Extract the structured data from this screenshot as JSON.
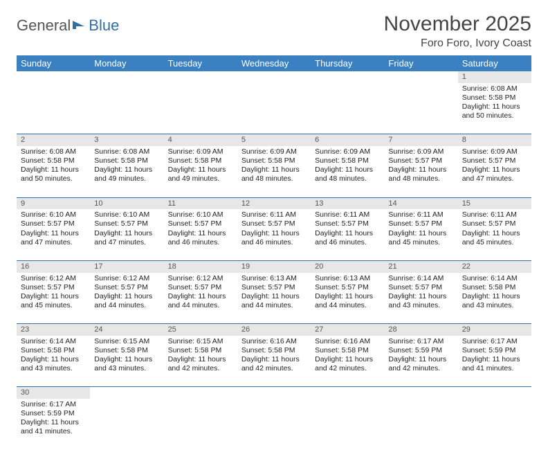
{
  "brand": {
    "part1": "General",
    "part2": "Blue",
    "logo_color": "#2f6fa7"
  },
  "header": {
    "title": "November 2025",
    "location": "Foro Foro, Ivory Coast"
  },
  "theme": {
    "header_bg": "#3b81c2",
    "header_fg": "#ffffff",
    "daynum_bg": "#e7e7e7",
    "divider": "#2f6fa7",
    "page_bg": "#ffffff",
    "text": "#222222"
  },
  "dayNames": [
    "Sunday",
    "Monday",
    "Tuesday",
    "Wednesday",
    "Thursday",
    "Friday",
    "Saturday"
  ],
  "labels": {
    "sunrise": "Sunrise:",
    "sunset": "Sunset:",
    "daylight": "Daylight:"
  },
  "weeks": [
    [
      null,
      null,
      null,
      null,
      null,
      null,
      {
        "d": "1",
        "sr": "6:08 AM",
        "ss": "5:58 PM",
        "dl": "11 hours and 50 minutes."
      }
    ],
    [
      {
        "d": "2",
        "sr": "6:08 AM",
        "ss": "5:58 PM",
        "dl": "11 hours and 50 minutes."
      },
      {
        "d": "3",
        "sr": "6:08 AM",
        "ss": "5:58 PM",
        "dl": "11 hours and 49 minutes."
      },
      {
        "d": "4",
        "sr": "6:09 AM",
        "ss": "5:58 PM",
        "dl": "11 hours and 49 minutes."
      },
      {
        "d": "5",
        "sr": "6:09 AM",
        "ss": "5:58 PM",
        "dl": "11 hours and 48 minutes."
      },
      {
        "d": "6",
        "sr": "6:09 AM",
        "ss": "5:58 PM",
        "dl": "11 hours and 48 minutes."
      },
      {
        "d": "7",
        "sr": "6:09 AM",
        "ss": "5:57 PM",
        "dl": "11 hours and 48 minutes."
      },
      {
        "d": "8",
        "sr": "6:09 AM",
        "ss": "5:57 PM",
        "dl": "11 hours and 47 minutes."
      }
    ],
    [
      {
        "d": "9",
        "sr": "6:10 AM",
        "ss": "5:57 PM",
        "dl": "11 hours and 47 minutes."
      },
      {
        "d": "10",
        "sr": "6:10 AM",
        "ss": "5:57 PM",
        "dl": "11 hours and 47 minutes."
      },
      {
        "d": "11",
        "sr": "6:10 AM",
        "ss": "5:57 PM",
        "dl": "11 hours and 46 minutes."
      },
      {
        "d": "12",
        "sr": "6:11 AM",
        "ss": "5:57 PM",
        "dl": "11 hours and 46 minutes."
      },
      {
        "d": "13",
        "sr": "6:11 AM",
        "ss": "5:57 PM",
        "dl": "11 hours and 46 minutes."
      },
      {
        "d": "14",
        "sr": "6:11 AM",
        "ss": "5:57 PM",
        "dl": "11 hours and 45 minutes."
      },
      {
        "d": "15",
        "sr": "6:11 AM",
        "ss": "5:57 PM",
        "dl": "11 hours and 45 minutes."
      }
    ],
    [
      {
        "d": "16",
        "sr": "6:12 AM",
        "ss": "5:57 PM",
        "dl": "11 hours and 45 minutes."
      },
      {
        "d": "17",
        "sr": "6:12 AM",
        "ss": "5:57 PM",
        "dl": "11 hours and 44 minutes."
      },
      {
        "d": "18",
        "sr": "6:12 AM",
        "ss": "5:57 PM",
        "dl": "11 hours and 44 minutes."
      },
      {
        "d": "19",
        "sr": "6:13 AM",
        "ss": "5:57 PM",
        "dl": "11 hours and 44 minutes."
      },
      {
        "d": "20",
        "sr": "6:13 AM",
        "ss": "5:57 PM",
        "dl": "11 hours and 44 minutes."
      },
      {
        "d": "21",
        "sr": "6:14 AM",
        "ss": "5:57 PM",
        "dl": "11 hours and 43 minutes."
      },
      {
        "d": "22",
        "sr": "6:14 AM",
        "ss": "5:58 PM",
        "dl": "11 hours and 43 minutes."
      }
    ],
    [
      {
        "d": "23",
        "sr": "6:14 AM",
        "ss": "5:58 PM",
        "dl": "11 hours and 43 minutes."
      },
      {
        "d": "24",
        "sr": "6:15 AM",
        "ss": "5:58 PM",
        "dl": "11 hours and 43 minutes."
      },
      {
        "d": "25",
        "sr": "6:15 AM",
        "ss": "5:58 PM",
        "dl": "11 hours and 42 minutes."
      },
      {
        "d": "26",
        "sr": "6:16 AM",
        "ss": "5:58 PM",
        "dl": "11 hours and 42 minutes."
      },
      {
        "d": "27",
        "sr": "6:16 AM",
        "ss": "5:58 PM",
        "dl": "11 hours and 42 minutes."
      },
      {
        "d": "28",
        "sr": "6:17 AM",
        "ss": "5:59 PM",
        "dl": "11 hours and 42 minutes."
      },
      {
        "d": "29",
        "sr": "6:17 AM",
        "ss": "5:59 PM",
        "dl": "11 hours and 41 minutes."
      }
    ],
    [
      {
        "d": "30",
        "sr": "6:17 AM",
        "ss": "5:59 PM",
        "dl": "11 hours and 41 minutes."
      },
      null,
      null,
      null,
      null,
      null,
      null
    ]
  ]
}
